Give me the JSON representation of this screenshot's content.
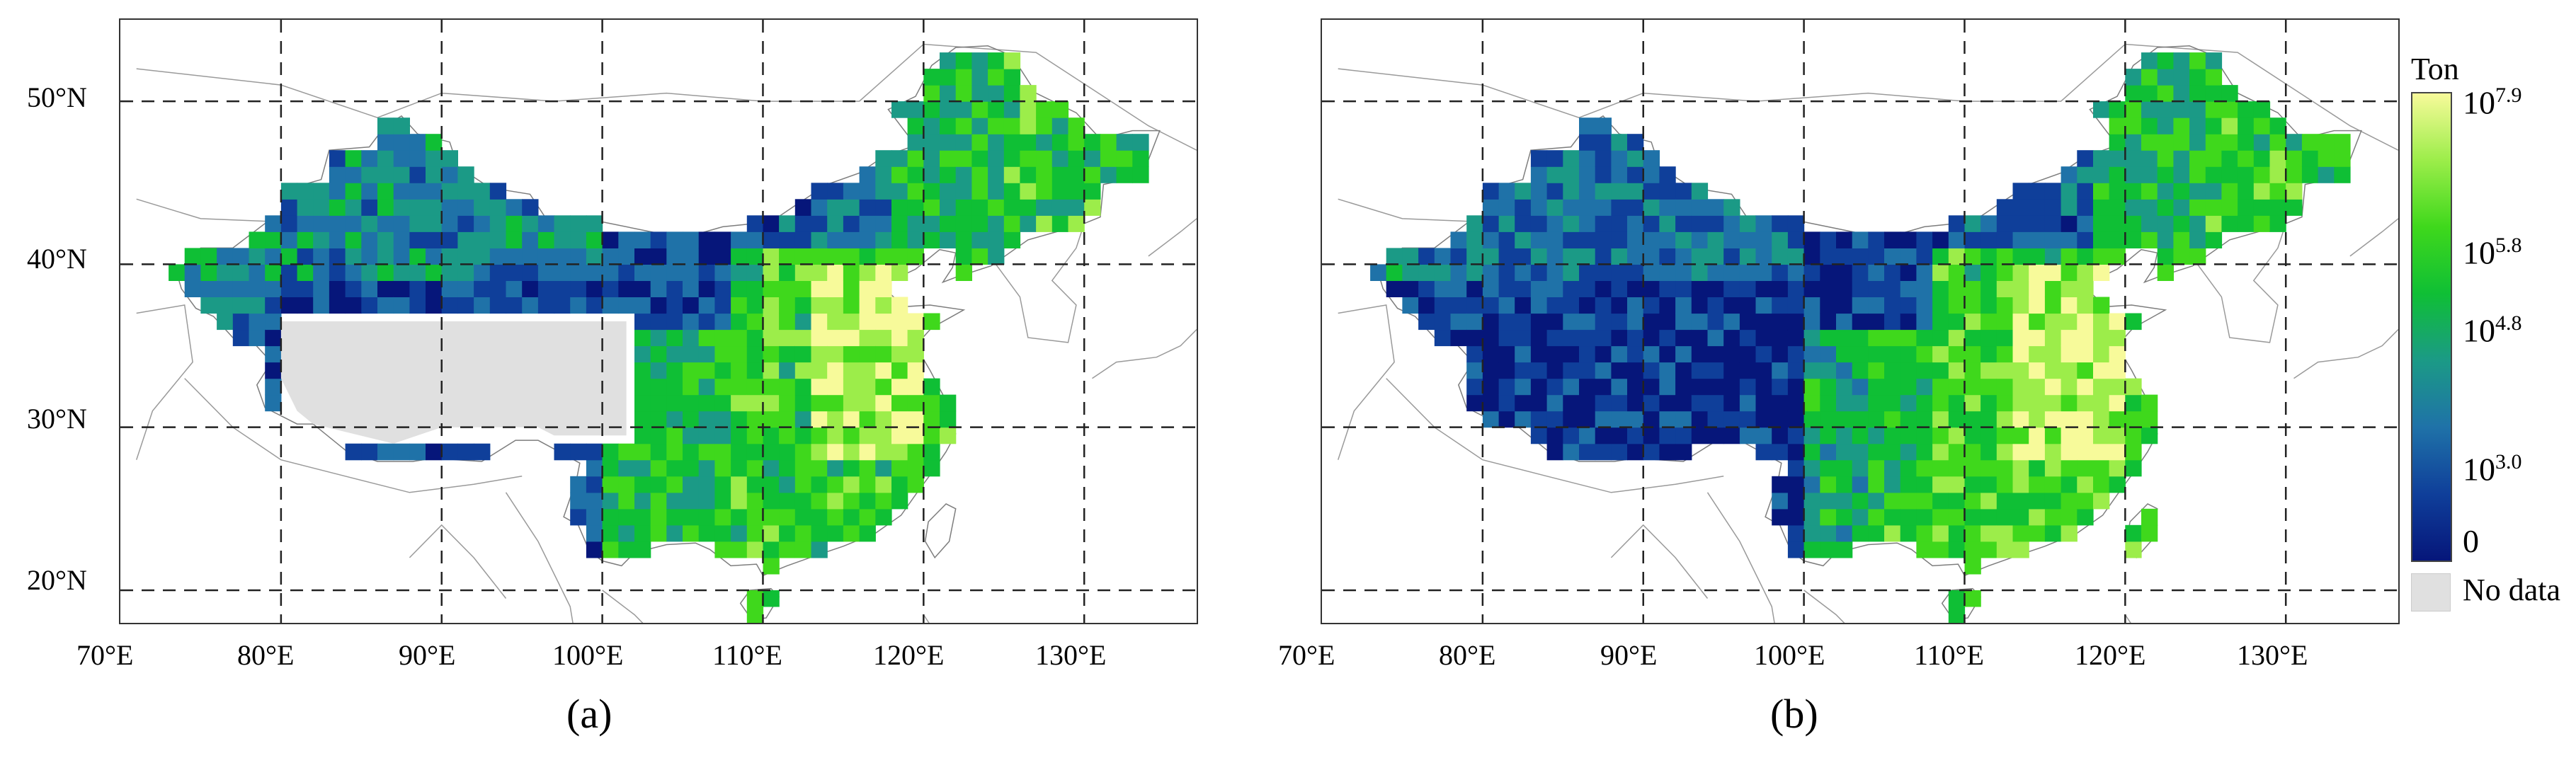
{
  "panels": [
    {
      "id": "a",
      "caption_letter": "a",
      "has_nodata": true
    },
    {
      "id": "b",
      "caption_letter": "b",
      "has_nodata": false
    }
  ],
  "axes": {
    "lon_ticks": [
      "70°E",
      "80°E",
      "90°E",
      "100°E",
      "110°E",
      "120°E",
      "130°E"
    ],
    "lat_ticks": [
      "50°N",
      "40°N",
      "30°N",
      "20°N"
    ],
    "lon_range": [
      70,
      137
    ],
    "lat_range": [
      18,
      55
    ]
  },
  "legend": {
    "title": "Ton",
    "ticks": [
      {
        "base": "10",
        "exp": "7.9"
      },
      {
        "base": "10",
        "exp": "5.8"
      },
      {
        "base": "10",
        "exp": "4.8"
      },
      {
        "base": "10",
        "exp": "3.0"
      },
      {
        "base": "0",
        "exp": ""
      }
    ],
    "nodata_label": "No data",
    "colors": [
      "#06167a",
      "#0f3f9a",
      "#1f72a8",
      "#1b9a86",
      "#0fbf35",
      "#3fd81c",
      "#9ced4a",
      "#f7fa9a"
    ],
    "nodata_color": "#e0e0e0"
  }
}
